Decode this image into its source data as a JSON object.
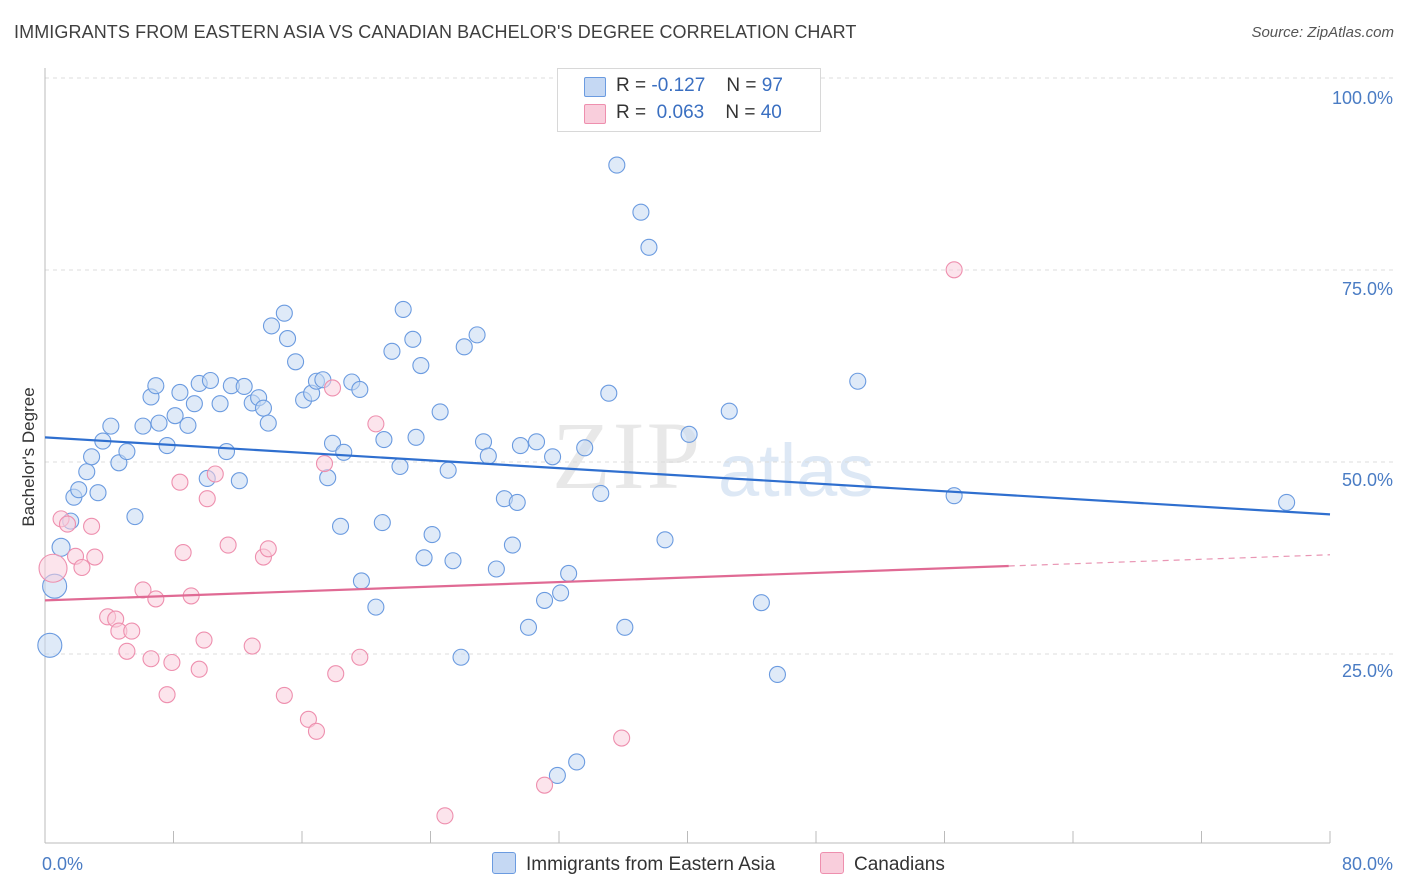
{
  "header": {
    "title": "IMMIGRANTS FROM EASTERN ASIA VS CANADIAN BACHELOR'S DEGREE CORRELATION CHART",
    "source": "Source: ZipAtlas.com"
  },
  "watermark": {
    "part1": "ZIP",
    "part2": "atlas"
  },
  "legend": {
    "rows": [
      {
        "r_label": "R =",
        "r_value": "-0.127",
        "n_label": "N =",
        "n_value": "97"
      },
      {
        "r_label": "R =",
        "r_value": "0.063",
        "n_label": "N =",
        "n_value": "40"
      }
    ]
  },
  "bottom_legend": {
    "series1": "Immigrants from Eastern Asia",
    "series2": "Canadians"
  },
  "chart_data": {
    "type": "scatter",
    "title": "IMMIGRANTS FROM EASTERN ASIA VS CANADIAN BACHELOR'S DEGREE CORRELATION CHART",
    "xlabel": "",
    "ylabel": "Bachelor's Degree",
    "xlim": [
      0,
      80
    ],
    "ylim": [
      0,
      100
    ],
    "x_tick_labels": [
      "0.0%",
      "80.0%"
    ],
    "y_tick_labels": [
      "100.0%",
      "75.0%",
      "50.0%",
      "25.0%"
    ],
    "y_ticks": [
      100,
      75,
      50,
      25
    ],
    "colors": {
      "blue": "#6b9be0",
      "blue_fill": "#c5d8f3",
      "blue_line": "#2f6fcf",
      "pink": "#ee8fae",
      "pink_fill": "#f9cedc",
      "pink_line": "#e06a94",
      "grid": "#dcdcdc"
    },
    "series": [
      {
        "name": "Immigrants from Eastern Asia",
        "color": "#6b9be0",
        "trend": {
          "x0": 0,
          "y0": 54.5,
          "x1": 80,
          "y1": 44.2
        },
        "points": [
          [
            0.3,
            26.7
          ],
          [
            0.6,
            34.6
          ],
          [
            1.0,
            39.8
          ],
          [
            1.6,
            43.3
          ],
          [
            1.8,
            46.5
          ],
          [
            2.1,
            47.5
          ],
          [
            2.6,
            49.9
          ],
          [
            2.9,
            51.9
          ],
          [
            3.3,
            47.1
          ],
          [
            3.6,
            54.0
          ],
          [
            4.1,
            56.0
          ],
          [
            4.6,
            51.1
          ],
          [
            5.1,
            52.6
          ],
          [
            5.6,
            43.9
          ],
          [
            6.1,
            56.0
          ],
          [
            6.6,
            59.9
          ],
          [
            6.9,
            61.4
          ],
          [
            7.1,
            56.4
          ],
          [
            7.6,
            53.4
          ],
          [
            8.1,
            57.4
          ],
          [
            8.4,
            60.5
          ],
          [
            8.9,
            56.1
          ],
          [
            9.3,
            59.0
          ],
          [
            9.6,
            61.7
          ],
          [
            10.1,
            49.0
          ],
          [
            10.3,
            62.1
          ],
          [
            10.9,
            59.0
          ],
          [
            11.3,
            52.6
          ],
          [
            11.6,
            61.4
          ],
          [
            12.1,
            48.7
          ],
          [
            12.4,
            61.3
          ],
          [
            12.9,
            59.1
          ],
          [
            13.3,
            59.8
          ],
          [
            13.6,
            58.4
          ],
          [
            13.9,
            56.4
          ],
          [
            14.1,
            69.4
          ],
          [
            14.9,
            71.1
          ],
          [
            15.1,
            67.7
          ],
          [
            15.6,
            64.6
          ],
          [
            16.1,
            59.5
          ],
          [
            16.6,
            60.4
          ],
          [
            16.9,
            62.0
          ],
          [
            17.3,
            62.2
          ],
          [
            17.6,
            49.1
          ],
          [
            17.9,
            53.7
          ],
          [
            18.4,
            42.6
          ],
          [
            18.6,
            52.5
          ],
          [
            19.1,
            61.9
          ],
          [
            19.6,
            60.9
          ],
          [
            19.7,
            35.3
          ],
          [
            20.6,
            31.8
          ],
          [
            21.0,
            43.1
          ],
          [
            21.1,
            54.2
          ],
          [
            21.6,
            66.0
          ],
          [
            22.1,
            50.6
          ],
          [
            22.3,
            71.6
          ],
          [
            22.9,
            67.6
          ],
          [
            23.1,
            54.5
          ],
          [
            23.4,
            64.1
          ],
          [
            23.6,
            38.4
          ],
          [
            24.1,
            41.5
          ],
          [
            24.6,
            57.9
          ],
          [
            25.1,
            50.1
          ],
          [
            25.4,
            38.0
          ],
          [
            25.9,
            25.1
          ],
          [
            26.1,
            66.6
          ],
          [
            26.9,
            68.2
          ],
          [
            27.3,
            53.9
          ],
          [
            27.6,
            52.0
          ],
          [
            28.1,
            36.9
          ],
          [
            28.6,
            46.3
          ],
          [
            29.1,
            40.1
          ],
          [
            29.4,
            45.8
          ],
          [
            29.6,
            53.4
          ],
          [
            30.1,
            29.1
          ],
          [
            30.6,
            53.9
          ],
          [
            31.1,
            32.7
          ],
          [
            31.6,
            51.9
          ],
          [
            31.9,
            9.3
          ],
          [
            32.1,
            33.7
          ],
          [
            32.6,
            36.3
          ],
          [
            33.1,
            11.1
          ],
          [
            33.6,
            53.1
          ],
          [
            34.6,
            47.0
          ],
          [
            35.1,
            60.4
          ],
          [
            35.6,
            90.9
          ],
          [
            36.1,
            29.1
          ],
          [
            37.1,
            84.6
          ],
          [
            37.6,
            79.9
          ],
          [
            38.6,
            40.8
          ],
          [
            40.1,
            54.9
          ],
          [
            42.6,
            58.0
          ],
          [
            44.6,
            32.4
          ],
          [
            45.6,
            22.8
          ],
          [
            50.6,
            62.0
          ],
          [
            56.6,
            46.7
          ],
          [
            77.3,
            45.8
          ]
        ]
      },
      {
        "name": "Canadians",
        "color": "#ee8fae",
        "trend": {
          "x0": 0,
          "y0": 32.7,
          "x1": 60,
          "y1": 37.3,
          "x2": 80,
          "y2": 38.8
        },
        "points": [
          [
            0.5,
            37.0
          ],
          [
            1.0,
            43.6
          ],
          [
            1.4,
            42.9
          ],
          [
            1.9,
            38.6
          ],
          [
            2.3,
            37.1
          ],
          [
            2.9,
            42.6
          ],
          [
            3.1,
            38.5
          ],
          [
            3.9,
            30.5
          ],
          [
            4.4,
            30.2
          ],
          [
            4.6,
            28.6
          ],
          [
            5.1,
            25.9
          ],
          [
            5.4,
            28.6
          ],
          [
            6.1,
            34.1
          ],
          [
            6.6,
            24.9
          ],
          [
            6.9,
            32.9
          ],
          [
            7.6,
            20.1
          ],
          [
            7.9,
            24.4
          ],
          [
            8.4,
            48.5
          ],
          [
            8.6,
            39.1
          ],
          [
            9.1,
            33.3
          ],
          [
            9.6,
            23.5
          ],
          [
            9.9,
            27.4
          ],
          [
            10.1,
            46.3
          ],
          [
            10.6,
            49.6
          ],
          [
            11.4,
            40.1
          ],
          [
            12.9,
            26.6
          ],
          [
            13.6,
            38.5
          ],
          [
            13.9,
            39.6
          ],
          [
            14.9,
            20.0
          ],
          [
            16.4,
            16.8
          ],
          [
            16.9,
            15.2
          ],
          [
            17.4,
            51.0
          ],
          [
            17.9,
            61.1
          ],
          [
            18.1,
            22.9
          ],
          [
            19.6,
            25.1
          ],
          [
            20.6,
            56.3
          ],
          [
            24.9,
            3.9
          ],
          [
            31.1,
            8.0
          ],
          [
            35.9,
            14.3
          ],
          [
            56.6,
            76.9
          ]
        ]
      }
    ]
  }
}
